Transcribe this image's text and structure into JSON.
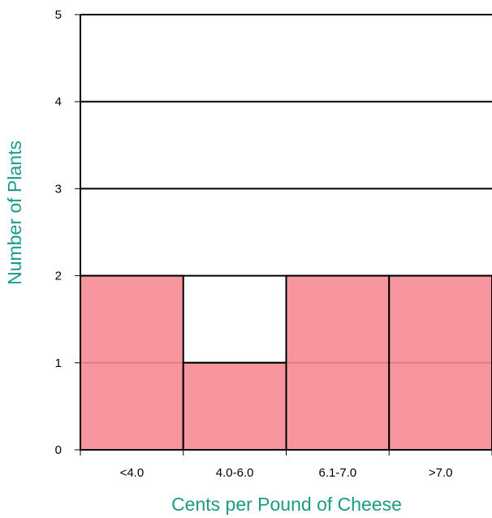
{
  "chart_data": {
    "type": "bar",
    "title": "",
    "xlabel": "Cents per Pound of Cheese",
    "ylabel": "Number of Plants",
    "categories": [
      "<4.0",
      "4.0-6.0",
      "6.1-7.0",
      ">7.0"
    ],
    "values": [
      2,
      1,
      2,
      2
    ],
    "ylim": [
      0,
      5
    ],
    "yticks": [
      "0",
      "1",
      "2",
      "3",
      "4",
      "5"
    ],
    "grid": true,
    "legend": "none",
    "bar_color": "#f58a92",
    "bar_edge_color": "#000000",
    "axis_title_color": "#1a9b86"
  }
}
